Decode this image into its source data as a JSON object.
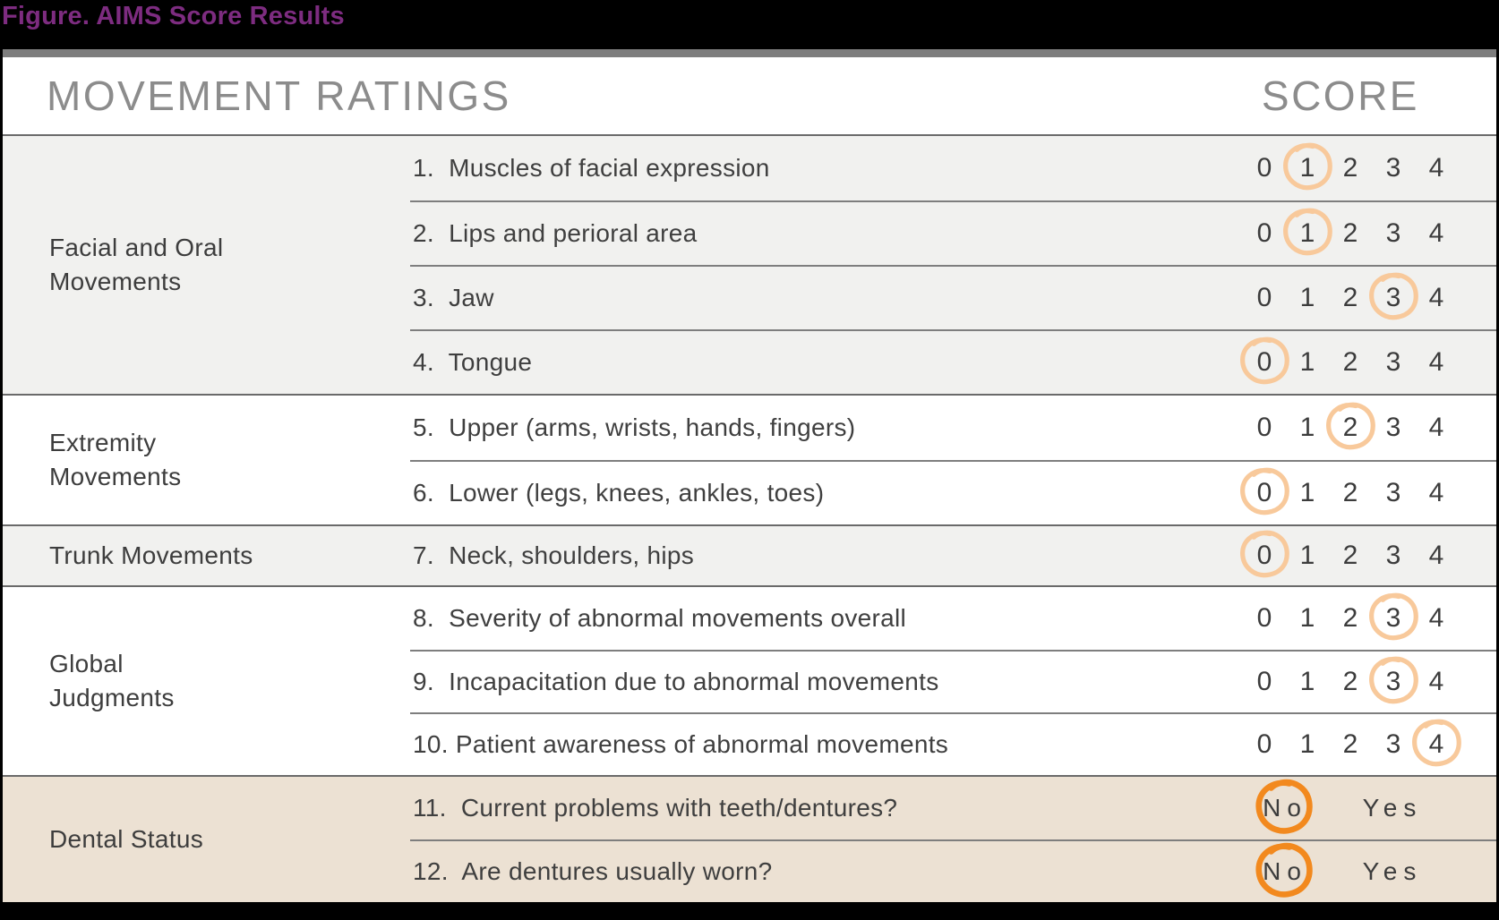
{
  "figure_title": "Figure. AIMS Score Results",
  "header": {
    "movement_ratings": "MOVEMENT RATINGS",
    "score": "SCORE"
  },
  "score_options": [
    "0",
    "1",
    "2",
    "3",
    "4"
  ],
  "yes_no_options": {
    "no": "No",
    "yes": "Yes"
  },
  "colors": {
    "title_purple": "#7d2c80",
    "circle_light_orange": "#f8c99b",
    "circle_strong_orange": "#f2891e",
    "section_gray_bg": "#f1f1ef",
    "section_tan_bg": "#ece1d3"
  },
  "sections": [
    {
      "category": "Facial and Oral\nMovements",
      "rows": [
        {
          "label": "1.  Muscles of facial expression",
          "type": "score",
          "circled": "1"
        },
        {
          "label": "2.  Lips and perioral area",
          "type": "score",
          "circled": "1"
        },
        {
          "label": "3.  Jaw",
          "type": "score",
          "circled": "3"
        },
        {
          "label": "4.  Tongue",
          "type": "score",
          "circled": "0"
        }
      ]
    },
    {
      "category": "Extremity\nMovements",
      "rows": [
        {
          "label": "5.  Upper (arms, wrists, hands, fingers)",
          "type": "score",
          "circled": "2"
        },
        {
          "label": "6.  Lower (legs, knees, ankles, toes)",
          "type": "score",
          "circled": "0"
        }
      ]
    },
    {
      "category": "Trunk Movements",
      "rows": [
        {
          "label": "7.  Neck, shoulders, hips",
          "type": "score",
          "circled": "0"
        }
      ]
    },
    {
      "category": "Global\nJudgments",
      "rows": [
        {
          "label": "8.  Severity of abnormal movements overall",
          "type": "score",
          "circled": "3"
        },
        {
          "label": "9.  Incapacitation due to abnormal movements",
          "type": "score",
          "circled": "3"
        },
        {
          "label": "10. Patient awareness of abnormal movements",
          "type": "score",
          "circled": "4"
        }
      ]
    },
    {
      "category": "Dental Status",
      "rows": [
        {
          "label": "11.  Current problems with teeth/dentures?",
          "type": "yesno",
          "circled": "No"
        },
        {
          "label": "12.  Are dentures usually worn?",
          "type": "yesno",
          "circled": "No"
        }
      ]
    }
  ]
}
